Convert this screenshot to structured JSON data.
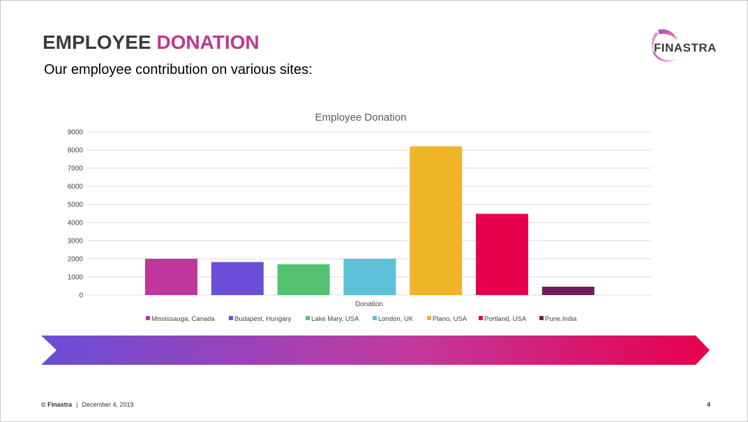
{
  "slide": {
    "title_part1": "EMPLOYEE",
    "title_part2": "DONATION",
    "subtitle": "Our employee contribution on various sites:",
    "logo_text": "FINASTRA",
    "footer_copyright": "© Finastra",
    "footer_separator": "|",
    "footer_date": "December 4, 2019",
    "page_number": "4"
  },
  "colors": {
    "title_dark": "#3b3b3b",
    "title_accent": "#c1368f",
    "banner_start": "#6a4ed8",
    "banner_mid": "#c23a9e",
    "banner_end": "#e6004c"
  },
  "chart_data": {
    "type": "bar",
    "title": "Employee Donation",
    "xlabel": "Donation",
    "ylabel": "",
    "ylim": [
      0,
      9000
    ],
    "yticks": [
      "0",
      "1000",
      "2000",
      "3000",
      "4000",
      "5000",
      "6000",
      "7000",
      "8000",
      "9000"
    ],
    "grid": true,
    "legend_position": "bottom",
    "categories": [
      "Donation"
    ],
    "series": [
      {
        "name": "Mississauga, Canada",
        "values": [
          2000
        ],
        "color": "#c1369d"
      },
      {
        "name": "Budapest, Hungary",
        "values": [
          1820
        ],
        "color": "#6b4fd8"
      },
      {
        "name": "Lake Mary, USA",
        "values": [
          1700
        ],
        "color": "#55c272"
      },
      {
        "name": "London, UK",
        "values": [
          2000
        ],
        "color": "#5bc0d8"
      },
      {
        "name": "Plano, USA",
        "values": [
          8200
        ],
        "color": "#f0b429"
      },
      {
        "name": "Portland, USA",
        "values": [
          4480
        ],
        "color": "#e6004c"
      },
      {
        "name": "Pune,India",
        "values": [
          460
        ],
        "color": "#6e1f5a"
      }
    ]
  }
}
